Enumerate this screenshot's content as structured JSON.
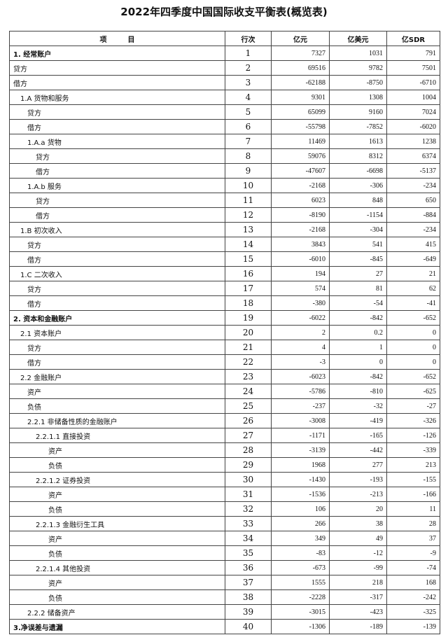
{
  "title": "2022年四季度中国国际收支平衡表(概览表)",
  "headers": {
    "item": "项　　　目",
    "row": "行次",
    "cny": "亿元",
    "usd": "亿美元",
    "sdr": "亿SDR"
  },
  "rows": [
    {
      "item": "1. 经常账户",
      "level": 0,
      "bold": true,
      "no": "1",
      "cny": "7327",
      "usd": "1031",
      "sdr": "791"
    },
    {
      "item": "贷方",
      "level": 0,
      "no": "2",
      "cny": "69516",
      "usd": "9782",
      "sdr": "7501"
    },
    {
      "item": "借方",
      "level": 0,
      "no": "3",
      "cny": "-62188",
      "usd": "-8750",
      "sdr": "-6710"
    },
    {
      "item": "1.A 货物和服务",
      "level": 1,
      "no": "4",
      "cny": "9301",
      "usd": "1308",
      "sdr": "1004"
    },
    {
      "item": "贷方",
      "level": 2,
      "no": "5",
      "cny": "65099",
      "usd": "9160",
      "sdr": "7024"
    },
    {
      "item": "借方",
      "level": 2,
      "no": "6",
      "cny": "-55798",
      "usd": "-7852",
      "sdr": "-6020"
    },
    {
      "item": "1.A.a 货物",
      "level": 2,
      "no": "7",
      "cny": "11469",
      "usd": "1613",
      "sdr": "1238"
    },
    {
      "item": "贷方",
      "level": 3,
      "no": "8",
      "cny": "59076",
      "usd": "8312",
      "sdr": "6374"
    },
    {
      "item": "借方",
      "level": 3,
      "no": "9",
      "cny": "-47607",
      "usd": "-6698",
      "sdr": "-5137"
    },
    {
      "item": "1.A.b 服务",
      "level": 2,
      "no": "10",
      "cny": "-2168",
      "usd": "-306",
      "sdr": "-234"
    },
    {
      "item": "贷方",
      "level": 3,
      "no": "11",
      "cny": "6023",
      "usd": "848",
      "sdr": "650"
    },
    {
      "item": "借方",
      "level": 3,
      "no": "12",
      "cny": "-8190",
      "usd": "-1154",
      "sdr": "-884"
    },
    {
      "item": "1.B 初次收入",
      "level": 1,
      "no": "13",
      "cny": "-2168",
      "usd": "-304",
      "sdr": "-234"
    },
    {
      "item": "贷方",
      "level": 2,
      "no": "14",
      "cny": "3843",
      "usd": "541",
      "sdr": "415"
    },
    {
      "item": "借方",
      "level": 2,
      "no": "15",
      "cny": "-6010",
      "usd": "-845",
      "sdr": "-649"
    },
    {
      "item": "1.C 二次收入",
      "level": 1,
      "no": "16",
      "cny": "194",
      "usd": "27",
      "sdr": "21"
    },
    {
      "item": "贷方",
      "level": 2,
      "no": "17",
      "cny": "574",
      "usd": "81",
      "sdr": "62"
    },
    {
      "item": "借方",
      "level": 2,
      "no": "18",
      "cny": "-380",
      "usd": "-54",
      "sdr": "-41"
    },
    {
      "item": "2. 资本和金融账户",
      "level": 0,
      "bold": true,
      "no": "19",
      "cny": "-6022",
      "usd": "-842",
      "sdr": "-652"
    },
    {
      "item": "2.1 资本账户",
      "level": 1,
      "no": "20",
      "cny": "2",
      "usd": "0.2",
      "sdr": "0"
    },
    {
      "item": "贷方",
      "level": 2,
      "no": "21",
      "cny": "4",
      "usd": "1",
      "sdr": "0"
    },
    {
      "item": "借方",
      "level": 2,
      "no": "22",
      "cny": "-3",
      "usd": "0",
      "sdr": "0"
    },
    {
      "item": "2.2 金融账户",
      "level": 1,
      "no": "23",
      "cny": "-6023",
      "usd": "-842",
      "sdr": "-652"
    },
    {
      "item": "资产",
      "level": 2,
      "no": "24",
      "cny": "-5786",
      "usd": "-810",
      "sdr": "-625"
    },
    {
      "item": "负债",
      "level": 2,
      "no": "25",
      "cny": "-237",
      "usd": "-32",
      "sdr": "-27"
    },
    {
      "item": "2.2.1 非储备性质的金融账户",
      "level": 2,
      "no": "26",
      "cny": "-3008",
      "usd": "-419",
      "sdr": "-326"
    },
    {
      "item": "2.2.1.1 直接投资",
      "level": 3,
      "no": "27",
      "cny": "-1171",
      "usd": "-165",
      "sdr": "-126"
    },
    {
      "item": "资产",
      "level": 4,
      "no": "28",
      "cny": "-3139",
      "usd": "-442",
      "sdr": "-339"
    },
    {
      "item": "负债",
      "level": 4,
      "no": "29",
      "cny": "1968",
      "usd": "277",
      "sdr": "213"
    },
    {
      "item": "2.2.1.2 证券投资",
      "level": 3,
      "no": "30",
      "cny": "-1430",
      "usd": "-193",
      "sdr": "-155"
    },
    {
      "item": "资产",
      "level": 4,
      "no": "31",
      "cny": "-1536",
      "usd": "-213",
      "sdr": "-166"
    },
    {
      "item": "负债",
      "level": 4,
      "no": "32",
      "cny": "106",
      "usd": "20",
      "sdr": "11"
    },
    {
      "item": "2.2.1.3 金融衍生工具",
      "level": 3,
      "no": "33",
      "cny": "266",
      "usd": "38",
      "sdr": "28"
    },
    {
      "item": "资产",
      "level": 4,
      "no": "34",
      "cny": "349",
      "usd": "49",
      "sdr": "37"
    },
    {
      "item": "负债",
      "level": 4,
      "no": "35",
      "cny": "-83",
      "usd": "-12",
      "sdr": "-9"
    },
    {
      "item": "2.2.1.4 其他投资",
      "level": 3,
      "no": "36",
      "cny": "-673",
      "usd": "-99",
      "sdr": "-74"
    },
    {
      "item": "资产",
      "level": 4,
      "no": "37",
      "cny": "1555",
      "usd": "218",
      "sdr": "168"
    },
    {
      "item": "负债",
      "level": 4,
      "no": "38",
      "cny": "-2228",
      "usd": "-317",
      "sdr": "-242"
    },
    {
      "item": "2.2.2 储备资产",
      "level": 2,
      "no": "39",
      "cny": "-3015",
      "usd": "-423",
      "sdr": "-325"
    },
    {
      "item": "3.净误差与遗漏",
      "level": 0,
      "bold": true,
      "no": "40",
      "cny": "-1306",
      "usd": "-189",
      "sdr": "-139"
    }
  ]
}
